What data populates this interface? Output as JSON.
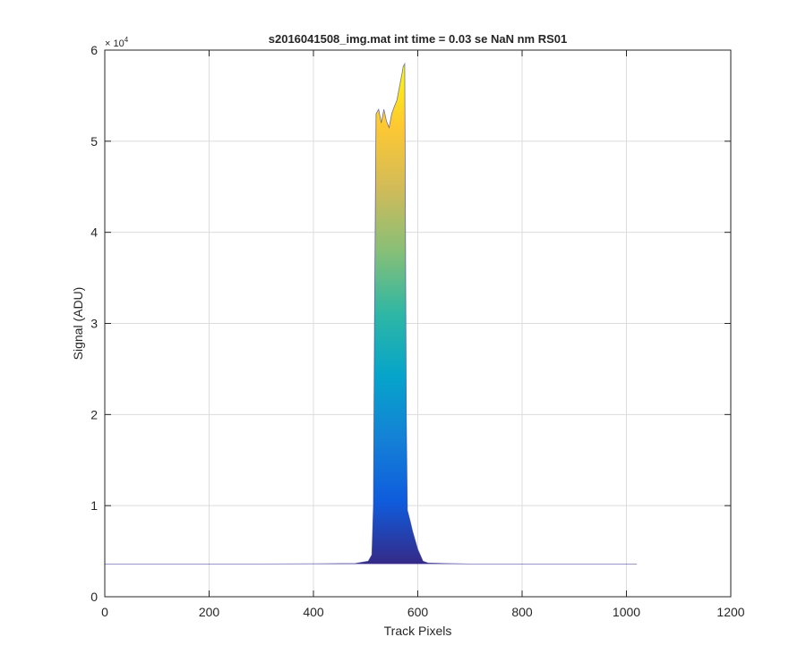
{
  "chart_data": {
    "type": "area",
    "title": "s2016041508_img.mat int time = 0.03 se  NaN nm RS01",
    "xlabel": "Track Pixels",
    "ylabel": "Signal (ADU)",
    "xlim": [
      0,
      1200
    ],
    "ylim": [
      0,
      60000
    ],
    "x_ticks": [
      0,
      200,
      400,
      600,
      800,
      1000,
      1200
    ],
    "x_tick_labels": [
      "0",
      "200",
      "400",
      "600",
      "800",
      "1000",
      "1200"
    ],
    "y_ticks": [
      0,
      10000,
      20000,
      30000,
      40000,
      50000,
      60000
    ],
    "y_tick_labels": [
      "0",
      "1",
      "2",
      "3",
      "4",
      "5",
      "6"
    ],
    "y_exponent_label": "× 10",
    "y_exponent_power": "4",
    "grid": true,
    "colormap": "parula",
    "colormap_stops": [
      "#352a87",
      "#0f5cdd",
      "#1481d6",
      "#06a4ca",
      "#2eb7a4",
      "#87bf77",
      "#d1bb59",
      "#fec832",
      "#f9fb0e"
    ],
    "series": [
      {
        "x": [
          0,
          100,
          200,
          300,
          400,
          480,
          505,
          512,
          515,
          517,
          520,
          525,
          530,
          535,
          540,
          545,
          550,
          555,
          560,
          565,
          570,
          572,
          575,
          578,
          580,
          585,
          590,
          600,
          610,
          620,
          650,
          700,
          800,
          900,
          1000,
          1020
        ],
        "y": [
          3600,
          3600,
          3600,
          3600,
          3620,
          3650,
          3900,
          4600,
          10000,
          30000,
          53000,
          53500,
          52000,
          53500,
          52200,
          51500,
          53000,
          53800,
          54500,
          56000,
          57500,
          58200,
          58500,
          20000,
          9500,
          8400,
          7200,
          5200,
          3900,
          3700,
          3650,
          3600,
          3600,
          3600,
          3600,
          3600
        ]
      }
    ]
  }
}
